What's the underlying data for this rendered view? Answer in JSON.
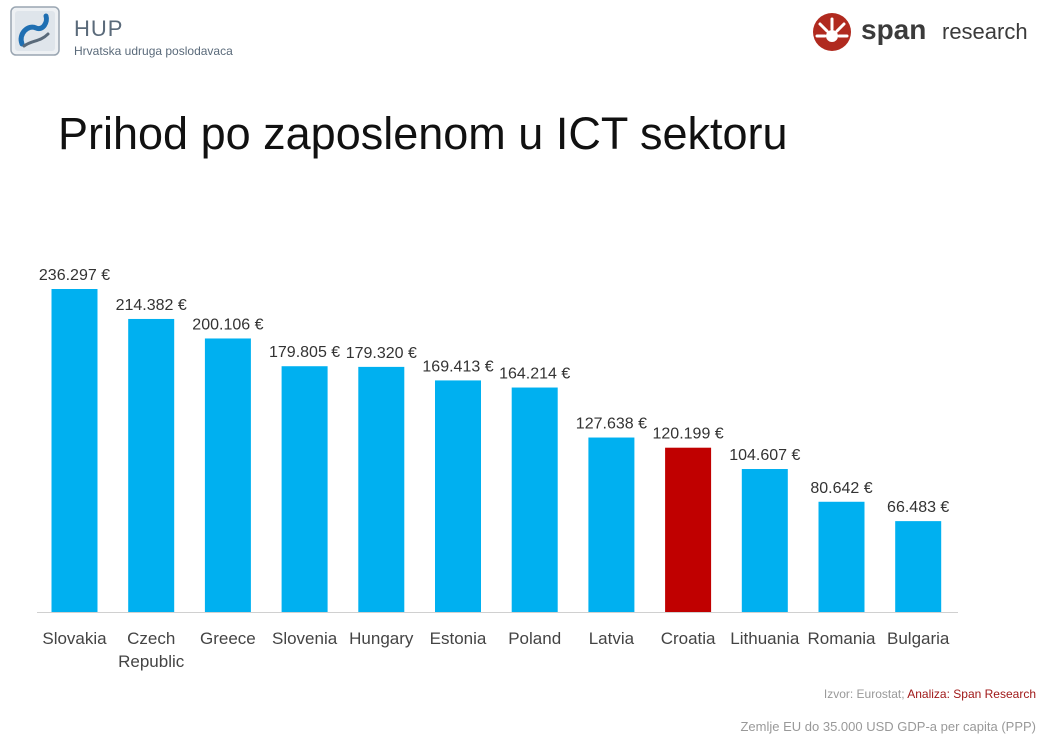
{
  "header": {
    "left_logo": {
      "icon": "hup-logo-icon",
      "name": "HUP",
      "subtitle": "Hrvatska udruga poslodavaca"
    },
    "right_logo": {
      "icon": "span-logo-icon",
      "name": "span",
      "suffix": "research",
      "color": "#b02a1f"
    }
  },
  "title": "Prihod po zaposlenom u ICT sektoru",
  "chart_data": {
    "type": "bar",
    "title": "Prihod po zaposlenom u ICT sektoru",
    "xlabel": "",
    "ylabel": "",
    "categories": [
      "Slovakia",
      "Czech Republic",
      "Greece",
      "Slovenia",
      "Hungary",
      "Estonia",
      "Poland",
      "Latvia",
      "Croatia",
      "Lithuania",
      "Romania",
      "Bulgaria"
    ],
    "category_lines": [
      [
        "Slovakia"
      ],
      [
        "Czech",
        "Republic"
      ],
      [
        "Greece"
      ],
      [
        "Slovenia"
      ],
      [
        "Hungary"
      ],
      [
        "Estonia"
      ],
      [
        "Poland"
      ],
      [
        "Latvia"
      ],
      [
        "Croatia"
      ],
      [
        "Lithuania"
      ],
      [
        "Romania"
      ],
      [
        "Bulgaria"
      ]
    ],
    "values": [
      236297,
      214382,
      200106,
      179805,
      179320,
      169413,
      164214,
      127638,
      120199,
      104607,
      80642,
      66483
    ],
    "data_labels": [
      "236.297 €",
      "214.382 €",
      "200.106 €",
      "179.805 €",
      "179.320 €",
      "169.413 €",
      "164.214 €",
      "127.638 €",
      "120.199 €",
      "104.607 €",
      "80.642 €",
      "66.483 €"
    ],
    "colors": {
      "default": "#00b0f0",
      "highlight": "#c00000"
    },
    "highlight_category": "Croatia",
    "ylim": [
      0,
      236297
    ],
    "grid": false,
    "legend": "none"
  },
  "footer": {
    "source_prefix": "Izvor: Eurostat; ",
    "source_analysis": "Analiza: Span Research",
    "note": "Zemlje EU do 35.000 USD GDP-a per capita (PPP)"
  }
}
